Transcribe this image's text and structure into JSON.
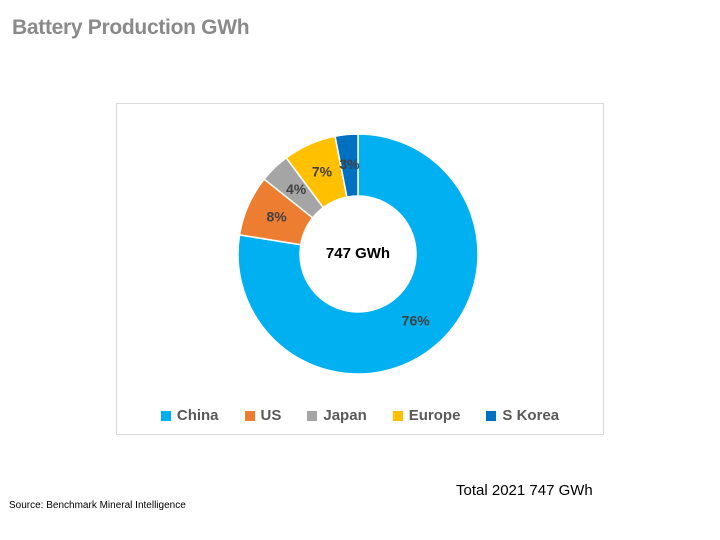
{
  "slide": {
    "title": "Battery Production GWh",
    "total_note": "Total 2021 747 GWh",
    "source_note": "Source:  Benchmark Mineral Intelligence"
  },
  "chart_data": {
    "type": "pie",
    "donut": true,
    "center_label": "747 GWh",
    "categories": [
      "China",
      "US",
      "Japan",
      "Europe",
      "S Korea"
    ],
    "values": [
      76,
      8,
      4,
      7,
      3
    ],
    "value_labels": [
      "76%",
      "8%",
      "4%",
      "7%",
      "3%"
    ],
    "units": "%",
    "colors": [
      "#00b0f0",
      "#ed7d31",
      "#a5a5a5",
      "#ffc000",
      "#0070c0"
    ],
    "legend_position": "bottom"
  }
}
